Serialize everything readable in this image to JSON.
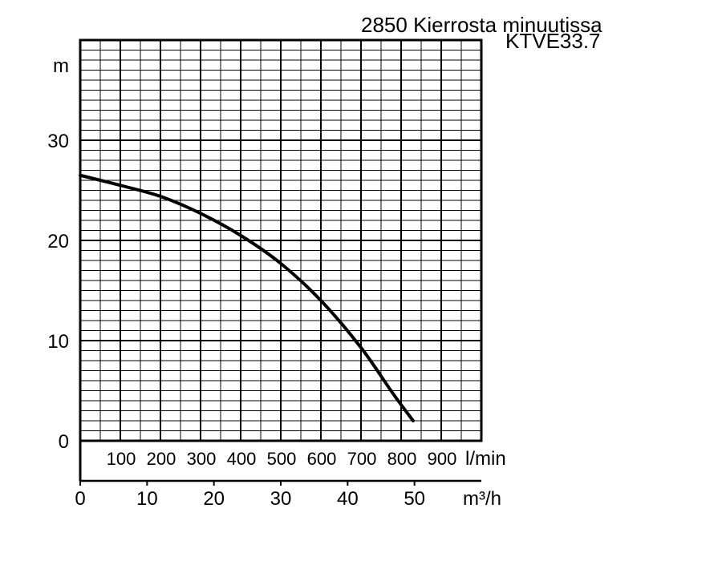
{
  "chart_data": {
    "type": "line",
    "title": "2850 Kierrosta minuutissa",
    "subtitle": "KTVE33.7",
    "ylabel": "m",
    "ylim": [
      0,
      40
    ],
    "y_ticks": [
      "0",
      "10",
      "20",
      "30"
    ],
    "x_units": {
      "lpm_label": "l/min",
      "m3h_label": "m³/h"
    },
    "x_lpm_ticks": [
      "100",
      "200",
      "300",
      "400",
      "500",
      "600",
      "700",
      "800",
      "900"
    ],
    "x_m3h_ticks": [
      "0",
      "10",
      "20",
      "30",
      "40",
      "50"
    ],
    "xlim_lpm": [
      0,
      1000
    ],
    "grid": true,
    "series": [
      {
        "x_lpm": [
          0,
          100,
          200,
          300,
          400,
          500,
          600,
          700,
          780,
          830
        ],
        "y": [
          26.5,
          25.5,
          24.4,
          22.7,
          20.5,
          17.7,
          14.0,
          9.3,
          4.7,
          2.0
        ]
      }
    ]
  }
}
